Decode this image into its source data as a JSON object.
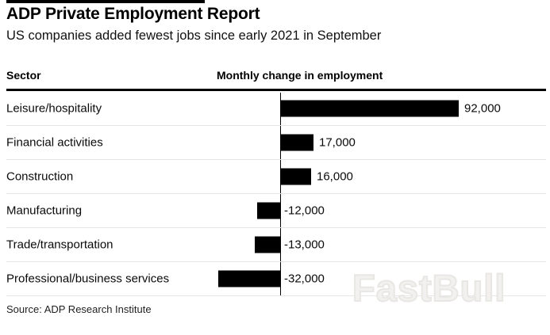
{
  "header": {
    "title": "ADP Private Employment Report",
    "subtitle": "US companies added fewest jobs since early 2021 in September"
  },
  "columns": {
    "sector": "Sector",
    "value": "Monthly change in employment"
  },
  "chart_data": {
    "type": "bar",
    "orientation": "horizontal",
    "title": "ADP Private Employment Report",
    "subtitle": "US companies added fewest jobs since early 2021 in September",
    "value_axis_label": "Monthly change in employment",
    "category_axis_label": "Sector",
    "categories": [
      "Leisure/hospitality",
      "Financial activities",
      "Construction",
      "Manufacturing",
      "Trade/transportation",
      "Professional/business services"
    ],
    "values": [
      92000,
      17000,
      16000,
      -12000,
      -13000,
      -32000
    ],
    "value_labels": [
      "92,000",
      "17,000",
      "16,000",
      "-12,000",
      "-13,000",
      "-32,000"
    ],
    "bar_color": "#000000",
    "zero_axis": true,
    "grid": false,
    "legend": false
  },
  "footer": {
    "source": "Source: ADP Research Institute"
  },
  "watermark": {
    "text": "FastBull"
  },
  "colors": {
    "background": "#ffffff",
    "bar": "#000000",
    "rule": "#000000",
    "separator": "#e6e6e6",
    "watermark": "#f0efec"
  }
}
